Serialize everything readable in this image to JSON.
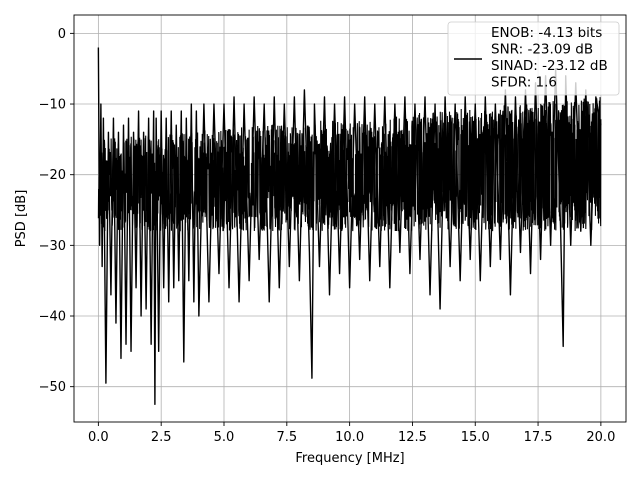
{
  "chart_data": {
    "type": "line",
    "title": "",
    "xlabel": "Frequency [MHz]",
    "ylabel": "PSD [dB]",
    "xlim": [
      -0.97,
      21.0
    ],
    "ylim": [
      -55.0,
      2.6
    ],
    "xticks": [
      0.0,
      2.5,
      5.0,
      7.5,
      10.0,
      12.5,
      15.0,
      17.5,
      20.0
    ],
    "xtick_labels": [
      "0.0",
      "2.5",
      "5.0",
      "7.5",
      "10.0",
      "12.5",
      "15.0",
      "17.5",
      "20.0"
    ],
    "yticks": [
      0,
      -10,
      -20,
      -30,
      -40,
      -50
    ],
    "ytick_labels": [
      "0",
      "−10",
      "−20",
      "−30",
      "−40",
      "−50"
    ],
    "grid": true,
    "legend": {
      "placement": "top-right",
      "lines": [
        "ENOB: -4.13 bits",
        "SNR: -23.09 dB",
        "SINAD: -23.12 dB",
        "SFDR: 1.6"
      ]
    },
    "series": [
      {
        "color": "#000000",
        "x": [
          0.0,
          0.05,
          0.1,
          0.15,
          0.2,
          0.3,
          0.4,
          0.5,
          0.6,
          0.7,
          0.8,
          0.9,
          1.0,
          1.1,
          1.2,
          1.3,
          1.4,
          1.5,
          1.6,
          1.7,
          1.8,
          1.9,
          2.0,
          2.1,
          2.2,
          2.25,
          2.3,
          2.4,
          2.5,
          2.6,
          2.7,
          2.8,
          2.9,
          3.0,
          3.1,
          3.2,
          3.3,
          3.4,
          3.5,
          3.6,
          3.7,
          3.8,
          3.9,
          4.0,
          4.2,
          4.4,
          4.6,
          4.8,
          5.0,
          5.2,
          5.4,
          5.6,
          5.8,
          6.0,
          6.2,
          6.4,
          6.6,
          6.8,
          7.0,
          7.2,
          7.4,
          7.6,
          7.8,
          8.0,
          8.2,
          8.4,
          8.5,
          8.6,
          8.8,
          9.0,
          9.2,
          9.4,
          9.6,
          9.8,
          10.0,
          10.2,
          10.4,
          10.6,
          10.8,
          11.0,
          11.2,
          11.4,
          11.6,
          11.8,
          12.0,
          12.2,
          12.4,
          12.6,
          12.8,
          13.0,
          13.2,
          13.4,
          13.6,
          13.8,
          14.0,
          14.2,
          14.4,
          14.6,
          14.8,
          15.0,
          15.2,
          15.4,
          15.6,
          15.8,
          16.0,
          16.2,
          16.4,
          16.6,
          16.8,
          17.0,
          17.2,
          17.4,
          17.6,
          17.8,
          18.0,
          18.2,
          18.4,
          18.5,
          18.6,
          18.8,
          19.0,
          19.2,
          19.4,
          19.6,
          19.8,
          20.0
        ],
        "y": [
          -2.0,
          -30.0,
          -10.0,
          -33.0,
          -12.0,
          -49.5,
          -14.0,
          -37.0,
          -12.0,
          -41.0,
          -14.0,
          -46.0,
          -13.0,
          -44.0,
          -12.0,
          -45.0,
          -14.0,
          -36.0,
          -11.0,
          -40.0,
          -14.0,
          -39.0,
          -12.0,
          -44.0,
          -11.0,
          -52.5,
          -12.0,
          -45.0,
          -11.0,
          -36.0,
          -12.0,
          -38.0,
          -11.0,
          -36.0,
          -13.0,
          -35.0,
          -11.0,
          -46.5,
          -12.0,
          -35.0,
          -10.0,
          -38.0,
          -11.0,
          -40.0,
          -10.0,
          -38.0,
          -10.0,
          -34.0,
          -10.0,
          -36.0,
          -9.0,
          -38.0,
          -10.0,
          -35.0,
          -9.0,
          -32.0,
          -10.0,
          -38.0,
          -9.0,
          -36.0,
          -10.0,
          -33.0,
          -9.0,
          -35.0,
          -8.0,
          -31.0,
          -48.8,
          -10.0,
          -33.0,
          -9.0,
          -37.0,
          -10.0,
          -34.0,
          -9.0,
          -36.0,
          -10.0,
          -32.0,
          -9.0,
          -35.0,
          -10.0,
          -33.0,
          -9.0,
          -36.0,
          -10.0,
          -31.0,
          -9.0,
          -34.0,
          -10.0,
          -32.0,
          -9.0,
          -37.0,
          -10.0,
          -39.0,
          -9.0,
          -33.0,
          -10.0,
          -35.0,
          -9.0,
          -32.0,
          -10.0,
          -35.0,
          -9.0,
          -33.0,
          -10.0,
          -32.0,
          -8.0,
          -37.0,
          -9.0,
          -31.0,
          -8.0,
          -34.0,
          -7.0,
          -32.0,
          -6.0,
          -30.0,
          -5.0,
          -28.0,
          -44.3,
          -6.0,
          -30.0,
          -7.0,
          -28.0,
          -8.0,
          -30.0,
          -9.0,
          -13.0
        ]
      }
    ]
  }
}
